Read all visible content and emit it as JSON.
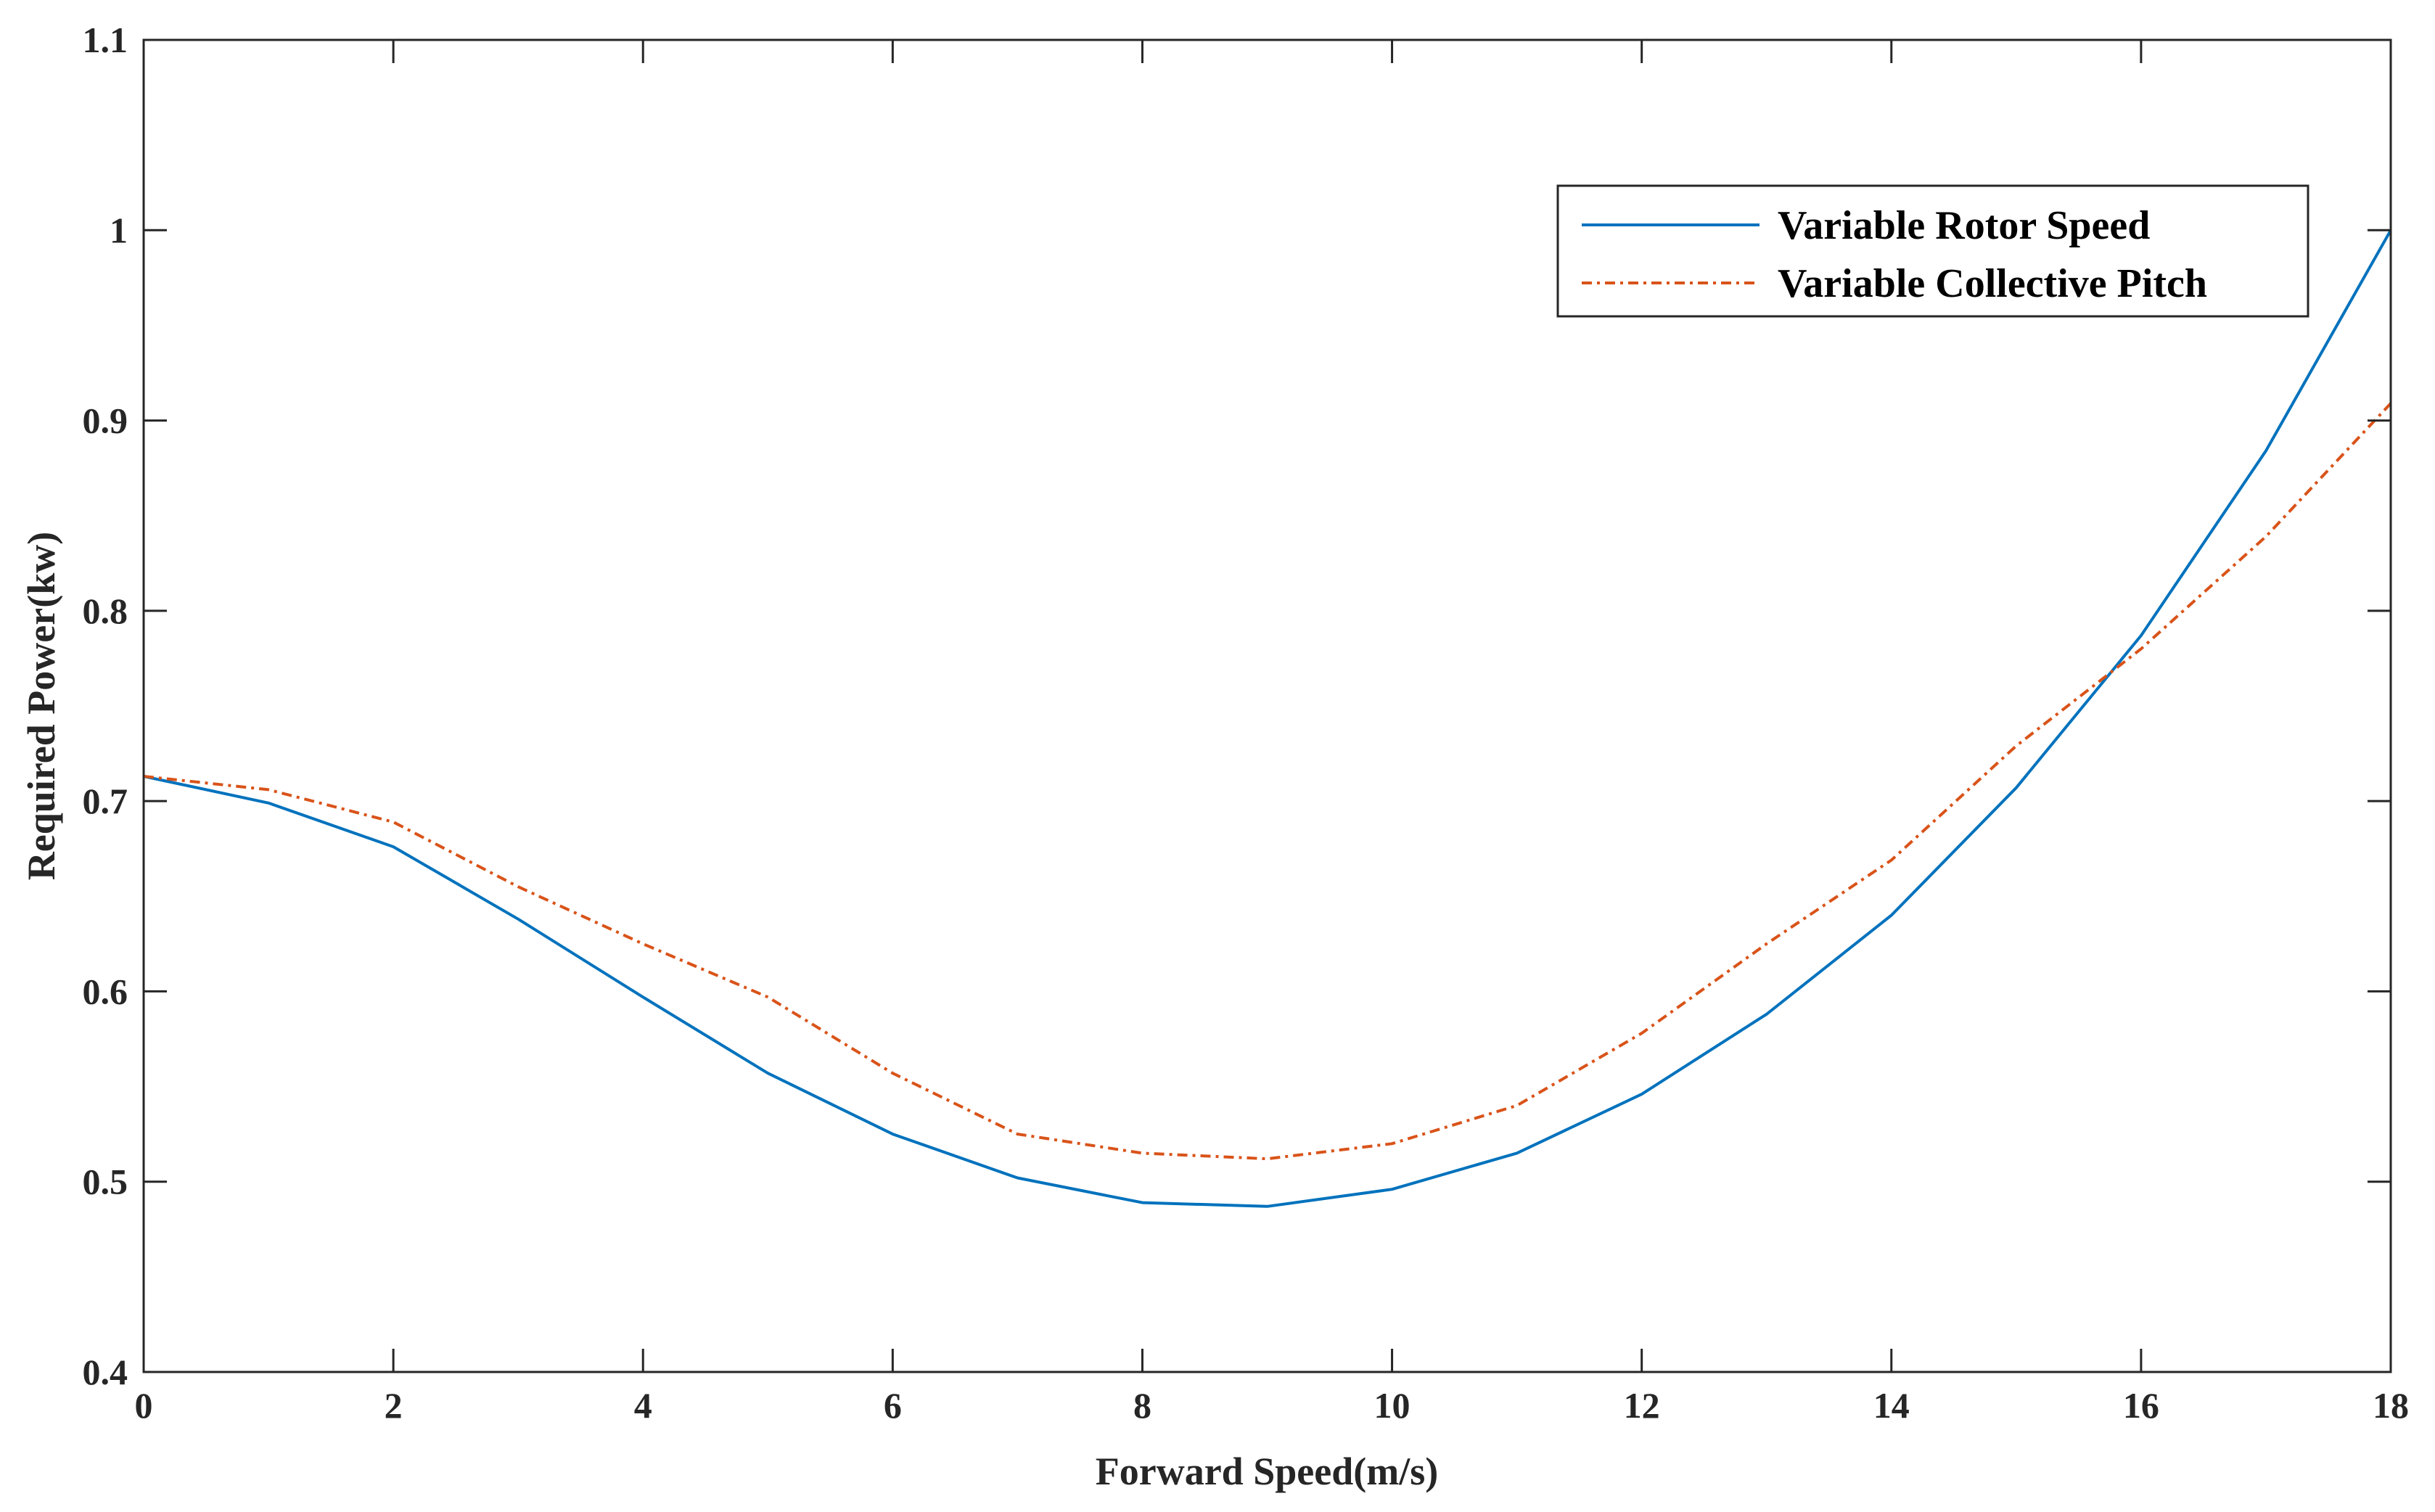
{
  "chart_data": {
    "type": "line",
    "title": "",
    "xlabel": "Forward Speed(m/s)",
    "ylabel": "Required Power(kw)",
    "xlim": [
      0,
      18
    ],
    "ylim": [
      0.4,
      1.1
    ],
    "xticks": [
      0,
      2,
      4,
      6,
      8,
      10,
      12,
      14,
      16,
      18
    ],
    "yticks": [
      0.4,
      0.5,
      0.6,
      0.7,
      0.8,
      0.9,
      1,
      1.1
    ],
    "xtick_labels": [
      "0",
      "2",
      "4",
      "6",
      "8",
      "10",
      "12",
      "14",
      "16",
      "18"
    ],
    "ytick_labels": [
      "0.4",
      "0.5",
      "0.6",
      "0.7",
      "0.8",
      "0.9",
      "1",
      "1.1"
    ],
    "grid": false,
    "legend_position": "top-right",
    "x": [
      0,
      1,
      2,
      3,
      4,
      5,
      6,
      7,
      8,
      9,
      10,
      11,
      12,
      13,
      14,
      15,
      16,
      17,
      18
    ],
    "series": [
      {
        "name": "Variable Rotor Speed",
        "color": "#0072BD",
        "line_style": "solid",
        "values": [
          0.713,
          0.699,
          0.676,
          0.638,
          0.597,
          0.557,
          0.525,
          0.502,
          0.489,
          0.487,
          0.496,
          0.515,
          0.546,
          0.588,
          0.64,
          0.707,
          0.787,
          0.884,
          1.0
        ]
      },
      {
        "name": "Variable Collective Pitch",
        "color": "#D95319",
        "line_style": "dash-dot",
        "values": [
          0.713,
          0.706,
          0.689,
          0.655,
          0.625,
          0.597,
          0.557,
          0.525,
          0.515,
          0.512,
          0.52,
          0.54,
          0.578,
          0.625,
          0.669,
          0.729,
          0.78,
          0.839,
          0.909
        ]
      }
    ]
  }
}
